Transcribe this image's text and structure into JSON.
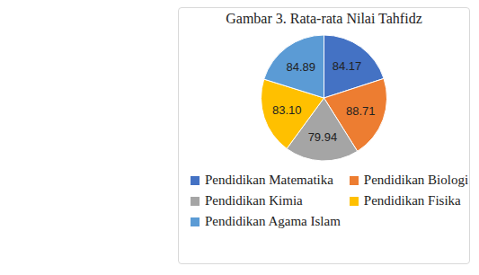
{
  "chart_data": {
    "type": "pie",
    "title": "Gambar 3. Rata-rata Nilai Tahfidz",
    "categories": [
      "Pendidikan Matematika",
      "Pendidikan Biologi",
      "Pendidikan Kimia",
      "Pendidikan Fisika",
      "Pendidikan Agama Islam"
    ],
    "values": [
      84.17,
      88.71,
      79.94,
      83.1,
      84.89
    ],
    "value_labels": [
      "84.17",
      "88.71",
      "79.94",
      "83.10",
      "84.89"
    ],
    "colors": [
      "#4472c4",
      "#ed7d31",
      "#a5a5a5",
      "#ffc000",
      "#5b9bd5"
    ],
    "data_labels": true,
    "legend": "bottom"
  }
}
